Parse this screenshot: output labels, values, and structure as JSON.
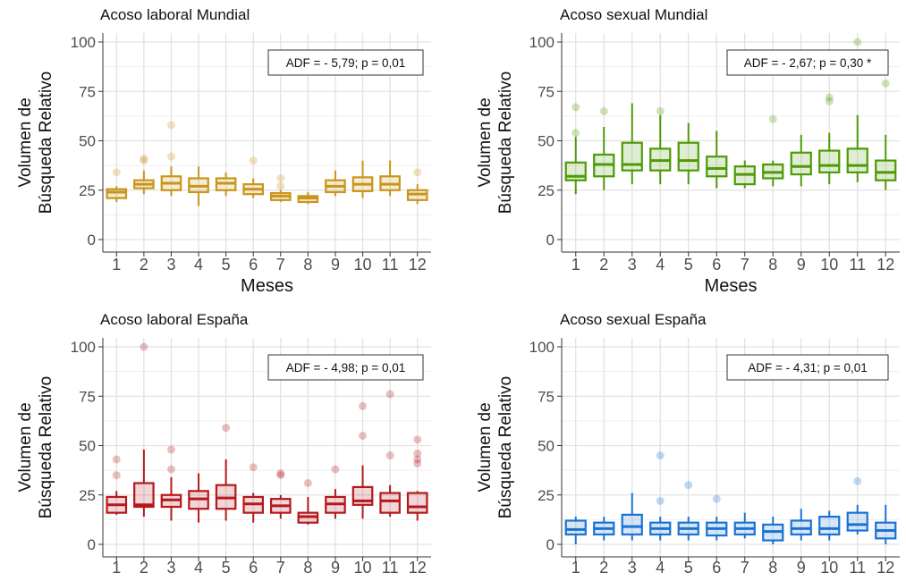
{
  "chart_data": [
    {
      "type": "box",
      "title": "Acoso laboral Mundial",
      "ylabel": [
        "Volumen de",
        "Búsqueda Relativo"
      ],
      "xlabel": "Meses",
      "categories": [
        "1",
        "2",
        "3",
        "4",
        "5",
        "6",
        "7",
        "8",
        "9",
        "10",
        "11",
        "12"
      ],
      "yticks": [
        "0",
        "25",
        "50",
        "75",
        "100"
      ],
      "ylim": [
        0,
        100
      ],
      "annotation": "ADF = - 5,79; p = 0,01",
      "color": "#c9951a",
      "boxes": [
        {
          "min": 19,
          "q1": 21,
          "median": 24,
          "q3": 25.5,
          "max": 27,
          "outliers": [
            34
          ]
        },
        {
          "min": 23,
          "q1": 26,
          "median": 28,
          "q3": 30,
          "max": 35,
          "outliers": [
            40,
            41
          ]
        },
        {
          "min": 22,
          "q1": 25,
          "median": 28.5,
          "q3": 32,
          "max": 37,
          "outliers": [
            42,
            58
          ]
        },
        {
          "min": 17,
          "q1": 24,
          "median": 27,
          "q3": 31,
          "max": 37,
          "outliers": []
        },
        {
          "min": 22,
          "q1": 25,
          "median": 28.5,
          "q3": 31,
          "max": 34,
          "outliers": []
        },
        {
          "min": 21,
          "q1": 23,
          "median": 25.5,
          "q3": 28,
          "max": 31,
          "outliers": [
            40
          ]
        },
        {
          "min": 19,
          "q1": 20,
          "median": 22,
          "q3": 23.5,
          "max": 25,
          "outliers": [
            27,
            31
          ]
        },
        {
          "min": 18,
          "q1": 19,
          "median": 21,
          "q3": 22,
          "max": 24,
          "outliers": []
        },
        {
          "min": 22,
          "q1": 24,
          "median": 27,
          "q3": 30,
          "max": 35,
          "outliers": []
        },
        {
          "min": 21,
          "q1": 24.5,
          "median": 28,
          "q3": 31.5,
          "max": 40,
          "outliers": []
        },
        {
          "min": 22,
          "q1": 25,
          "median": 28,
          "q3": 32,
          "max": 40,
          "outliers": []
        },
        {
          "min": 18,
          "q1": 20,
          "median": 23,
          "q3": 25,
          "max": 28,
          "outliers": [
            34
          ]
        }
      ]
    },
    {
      "type": "box",
      "title": "Acoso sexual Mundial",
      "ylabel": [
        "Volumen de",
        "Búsqueda Relativo"
      ],
      "xlabel": "Meses",
      "categories": [
        "1",
        "2",
        "3",
        "4",
        "5",
        "6",
        "7",
        "8",
        "9",
        "10",
        "11",
        "12"
      ],
      "yticks": [
        "0",
        "25",
        "50",
        "75",
        "100"
      ],
      "ylim": [
        0,
        100
      ],
      "annotation": "ADF = - 2,67; p = 0,30 *",
      "color": "#4e9a06",
      "boxes": [
        {
          "min": 23,
          "q1": 30,
          "median": 32,
          "q3": 39,
          "max": 52,
          "outliers": [
            54,
            67
          ]
        },
        {
          "min": 25,
          "q1": 32,
          "median": 38,
          "q3": 43,
          "max": 57,
          "outliers": [
            65
          ]
        },
        {
          "min": 28,
          "q1": 35,
          "median": 38,
          "q3": 49,
          "max": 69,
          "outliers": []
        },
        {
          "min": 28,
          "q1": 35,
          "median": 40,
          "q3": 46,
          "max": 63,
          "outliers": [
            65
          ]
        },
        {
          "min": 28,
          "q1": 35,
          "median": 40,
          "q3": 49,
          "max": 59,
          "outliers": []
        },
        {
          "min": 26,
          "q1": 32,
          "median": 36,
          "q3": 42,
          "max": 55,
          "outliers": []
        },
        {
          "min": 26,
          "q1": 28,
          "median": 33,
          "q3": 37,
          "max": 40,
          "outliers": []
        },
        {
          "min": 27,
          "q1": 31,
          "median": 34,
          "q3": 38,
          "max": 40,
          "outliers": [
            61
          ]
        },
        {
          "min": 27,
          "q1": 33,
          "median": 37,
          "q3": 44,
          "max": 53,
          "outliers": []
        },
        {
          "min": 28,
          "q1": 34,
          "median": 37.5,
          "q3": 45,
          "max": 54,
          "outliers": [
            70,
            72
          ]
        },
        {
          "min": 29,
          "q1": 34,
          "median": 37.5,
          "q3": 46,
          "max": 63,
          "outliers": [
            100
          ]
        },
        {
          "min": 25,
          "q1": 30,
          "median": 34,
          "q3": 40,
          "max": 53,
          "outliers": [
            79
          ]
        }
      ]
    },
    {
      "type": "box",
      "title": "Acoso laboral España",
      "ylabel": [
        "Volumen de",
        "Búsqueda Relativo"
      ],
      "xlabel": "",
      "categories": [
        "1",
        "2",
        "3",
        "4",
        "5",
        "6",
        "7",
        "8",
        "9",
        "10",
        "11",
        "12"
      ],
      "yticks": [
        "0",
        "25",
        "50",
        "75",
        "100"
      ],
      "ylim": [
        0,
        100
      ],
      "annotation": "ADF = - 4,98; p = 0,01",
      "color": "#b5181c",
      "boxes": [
        {
          "min": 15,
          "q1": 16,
          "median": 20,
          "q3": 24,
          "max": 27,
          "outliers": [
            35,
            43
          ]
        },
        {
          "min": 14,
          "q1": 19,
          "median": 20,
          "q3": 31,
          "max": 48,
          "outliers": [
            100
          ]
        },
        {
          "min": 12,
          "q1": 19,
          "median": 22.5,
          "q3": 25,
          "max": 34,
          "outliers": [
            38,
            48
          ]
        },
        {
          "min": 11,
          "q1": 18,
          "median": 23,
          "q3": 27,
          "max": 36,
          "outliers": []
        },
        {
          "min": 12,
          "q1": 18,
          "median": 23.5,
          "q3": 30,
          "max": 43,
          "outliers": [
            59
          ]
        },
        {
          "min": 11,
          "q1": 16,
          "median": 20.5,
          "q3": 24,
          "max": 26,
          "outliers": [
            39
          ]
        },
        {
          "min": 13,
          "q1": 16,
          "median": 19.5,
          "q3": 23,
          "max": 25,
          "outliers": [
            35,
            36
          ]
        },
        {
          "min": 10,
          "q1": 11,
          "median": 14,
          "q3": 16,
          "max": 24,
          "outliers": [
            31
          ]
        },
        {
          "min": 13,
          "q1": 16,
          "median": 20.5,
          "q3": 24,
          "max": 28,
          "outliers": [
            38
          ]
        },
        {
          "min": 13,
          "q1": 20,
          "median": 22,
          "q3": 29,
          "max": 40,
          "outliers": [
            55,
            70
          ]
        },
        {
          "min": 14,
          "q1": 16,
          "median": 22,
          "q3": 26,
          "max": 30,
          "outliers": [
            45,
            76
          ]
        },
        {
          "min": 12,
          "q1": 16,
          "median": 19,
          "q3": 26,
          "max": 27,
          "outliers": [
            41,
            43,
            46,
            53
          ]
        }
      ]
    },
    {
      "type": "box",
      "title": "Acoso sexual España",
      "ylabel": [
        "Volumen de",
        "Búsqueda Relativo"
      ],
      "xlabel": "",
      "categories": [
        "1",
        "2",
        "3",
        "4",
        "5",
        "6",
        "7",
        "8",
        "9",
        "10",
        "11",
        "12"
      ],
      "yticks": [
        "0",
        "25",
        "50",
        "75",
        "100"
      ],
      "ylim": [
        0,
        100
      ],
      "annotation": "ADF = - 4,31; p = 0,01",
      "color": "#1a73d4",
      "boxes": [
        {
          "min": 0,
          "q1": 5,
          "median": 7.5,
          "q3": 12,
          "max": 14,
          "outliers": []
        },
        {
          "min": 2,
          "q1": 5,
          "median": 8,
          "q3": 11,
          "max": 14,
          "outliers": []
        },
        {
          "min": 2,
          "q1": 5,
          "median": 9,
          "q3": 15,
          "max": 26,
          "outliers": []
        },
        {
          "min": 2,
          "q1": 5,
          "median": 8,
          "q3": 11,
          "max": 14,
          "outliers": [
            22,
            45
          ]
        },
        {
          "min": 2,
          "q1": 5,
          "median": 8,
          "q3": 11,
          "max": 14,
          "outliers": [
            30
          ]
        },
        {
          "min": 2,
          "q1": 4.5,
          "median": 8,
          "q3": 11,
          "max": 14,
          "outliers": [
            23
          ]
        },
        {
          "min": 3,
          "q1": 5,
          "median": 8,
          "q3": 11,
          "max": 16,
          "outliers": []
        },
        {
          "min": 0,
          "q1": 2,
          "median": 6.5,
          "q3": 10,
          "max": 14,
          "outliers": []
        },
        {
          "min": 2,
          "q1": 5,
          "median": 8,
          "q3": 12,
          "max": 18,
          "outliers": []
        },
        {
          "min": 2,
          "q1": 5,
          "median": 8,
          "q3": 14,
          "max": 17,
          "outliers": []
        },
        {
          "min": 5,
          "q1": 7,
          "median": 10,
          "q3": 16,
          "max": 20,
          "outliers": [
            32
          ]
        },
        {
          "min": 0,
          "q1": 3,
          "median": 7,
          "q3": 11,
          "max": 20,
          "outliers": []
        }
      ]
    }
  ]
}
